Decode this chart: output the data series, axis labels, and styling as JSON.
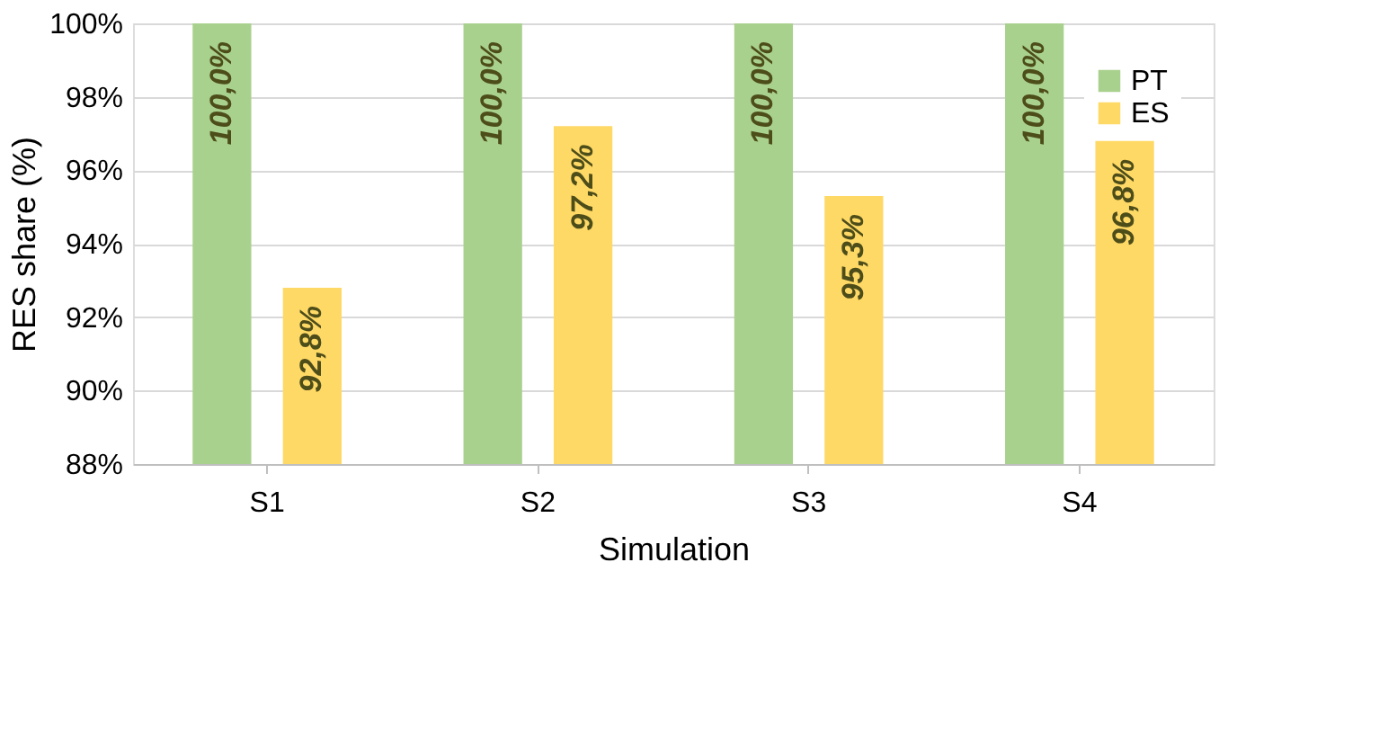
{
  "chart_data": {
    "type": "bar",
    "xlabel": "Simulation",
    "ylabel": "RES share (%)",
    "categories": [
      "S1",
      "S2",
      "S3",
      "S4"
    ],
    "series": [
      {
        "name": "PT",
        "color": "#a9d18e",
        "values": [
          100.0,
          100.0,
          100.0,
          100.0
        ],
        "value_labels": [
          "100,0%",
          "100,0%",
          "100,0%",
          "100,0%"
        ]
      },
      {
        "name": "ES",
        "color": "#ffd966",
        "values": [
          92.8,
          97.2,
          95.3,
          96.8
        ],
        "value_labels": [
          "92,8%",
          "97,2%",
          "95,3%",
          "96,8%"
        ]
      }
    ],
    "ylim": [
      88,
      100
    ],
    "yticks": [
      {
        "value": 88,
        "label": "88%"
      },
      {
        "value": 90,
        "label": "90%"
      },
      {
        "value": 92,
        "label": "92%"
      },
      {
        "value": 94,
        "label": "94%"
      },
      {
        "value": 96,
        "label": "96%"
      },
      {
        "value": 98,
        "label": "98%"
      },
      {
        "value": 100,
        "label": "100%"
      }
    ],
    "grid": "y",
    "legend": "top right"
  }
}
